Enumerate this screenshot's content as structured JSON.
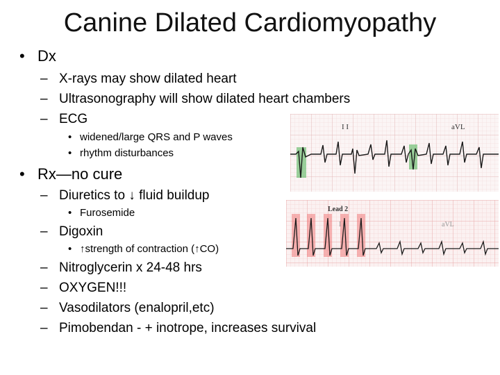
{
  "title": "Canine Dilated Cardiomyopathy",
  "bullets": {
    "dot": "•",
    "dash": "–"
  },
  "dx": {
    "label": "Dx",
    "items": [
      "X-rays may show dilated heart",
      "Ultrasonography will show dilated heart chambers",
      "ECG"
    ],
    "ecg_sub": [
      "widened/large QRS and P waves",
      "rhythm disturbances"
    ]
  },
  "rx": {
    "label": "Rx—no cure",
    "diuretics": "Diuretics to ↓ fluid buildup",
    "diuretics_sub": "Furosemide",
    "digoxin": "Digoxin",
    "digoxin_sub": "↑strength of contraction (↑CO)",
    "rest": [
      "Nitroglycerin x 24-48 hrs",
      "OXYGEN!!!",
      "Vasodilators (enalopril,etc)",
      "Pimobendan - + inotrope, increases survival"
    ]
  },
  "ecg_image_1": {
    "lead_left": "I I",
    "lead_right": "aVL",
    "grid_color": "#e3b7b7",
    "highlight_color": "#6fbf73"
  },
  "ecg_image_2": {
    "lead_label": "Lead 2",
    "lead_left": "I I",
    "lead_right": "aVL",
    "highlight_color": "#f07a7a"
  }
}
